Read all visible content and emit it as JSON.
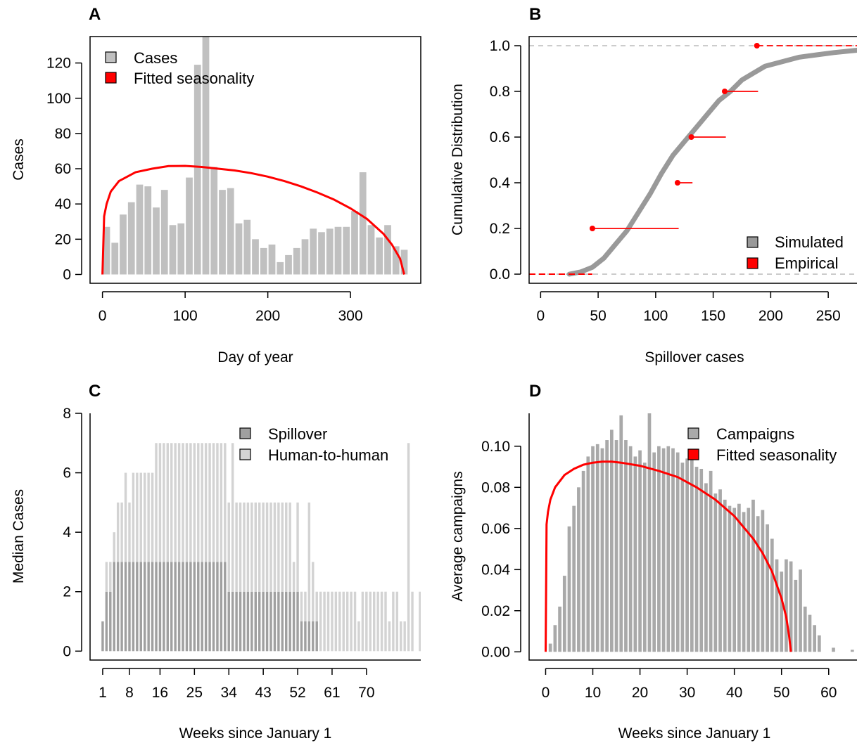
{
  "chart_data": [
    {
      "panel": "A",
      "type": "bar",
      "xlabel": "Day of year",
      "ylabel": "Cases",
      "xlim": [
        -15,
        385
      ],
      "ylim": [
        -5,
        135
      ],
      "xticks": [
        0,
        100,
        200,
        300
      ],
      "yticks": [
        0,
        20,
        40,
        60,
        80,
        100,
        120
      ],
      "legend_position": "top-left",
      "series": [
        {
          "name": "Cases",
          "type": "bar",
          "color": "#c0c0c0",
          "bin_width": 10,
          "x": [
            0,
            10,
            20,
            30,
            40,
            50,
            60,
            70,
            80,
            90,
            100,
            110,
            120,
            130,
            140,
            150,
            160,
            170,
            180,
            190,
            200,
            210,
            220,
            230,
            240,
            250,
            260,
            270,
            280,
            290,
            300,
            310,
            320,
            330,
            340,
            350,
            360
          ],
          "values": [
            27,
            18,
            34,
            41,
            51,
            50,
            38,
            48,
            28,
            29,
            55,
            119,
            135,
            61,
            48,
            49,
            29,
            31,
            20,
            15,
            17,
            7,
            11,
            15,
            20,
            26,
            24,
            26,
            27,
            27,
            36,
            58,
            28,
            21,
            28,
            16,
            14
          ]
        },
        {
          "name": "Fitted seasonality",
          "type": "line",
          "color": "#ff0000",
          "x": [
            0,
            2,
            5,
            10,
            20,
            40,
            60,
            80,
            100,
            120,
            140,
            160,
            180,
            200,
            220,
            240,
            260,
            280,
            300,
            320,
            340,
            350,
            360,
            365
          ],
          "values": [
            0,
            33,
            40,
            47,
            53,
            58,
            60,
            61.5,
            61.6,
            61,
            60,
            59,
            57.5,
            55.5,
            53,
            50,
            46.5,
            42.5,
            37.5,
            31.5,
            23,
            17,
            9,
            0
          ]
        }
      ]
    },
    {
      "panel": "B",
      "type": "line",
      "xlabel": "Spillover cases",
      "ylabel": "Cumulative Distribution",
      "xlim": [
        -10,
        275
      ],
      "ylim": [
        -0.04,
        1.04
      ],
      "xticks": [
        0,
        50,
        100,
        150,
        200,
        250
      ],
      "yticks": [
        0.0,
        0.2,
        0.4,
        0.6,
        0.8,
        1.0
      ],
      "reference_lines": [
        0.0,
        1.0
      ],
      "legend_position": "bottom-right",
      "series": [
        {
          "name": "Simulated",
          "type": "line",
          "color": "#999999",
          "x": [
            25,
            35,
            45,
            55,
            65,
            75,
            85,
            95,
            105,
            115,
            125,
            135,
            145,
            155,
            165,
            175,
            185,
            195,
            210,
            225,
            240,
            255,
            275
          ],
          "values": [
            0,
            0.01,
            0.03,
            0.07,
            0.13,
            0.19,
            0.27,
            0.35,
            0.44,
            0.52,
            0.58,
            0.64,
            0.7,
            0.76,
            0.8,
            0.85,
            0.88,
            0.91,
            0.93,
            0.95,
            0.96,
            0.97,
            0.98
          ]
        },
        {
          "name": "Empirical",
          "type": "step",
          "color": "#ff0000",
          "points": [
            {
              "x": 45,
              "y": 0.2,
              "x_end": 120
            },
            {
              "x": 119,
              "y": 0.4,
              "x_end": 132
            },
            {
              "x": 131,
              "y": 0.6,
              "x_end": 161
            },
            {
              "x": 160,
              "y": 0.8,
              "x_end": 189
            },
            {
              "x": 188,
              "y": 1.0,
              "x_end": 275
            }
          ],
          "zero_segment": [
            -10,
            45
          ]
        }
      ]
    },
    {
      "panel": "C",
      "type": "bar",
      "xlabel": "Weeks since January 1",
      "ylabel": "Median Cases",
      "xlim": [
        -2.3,
        84.2
      ],
      "ylim": [
        -0.3,
        8
      ],
      "xticks": [
        1,
        8,
        16,
        25,
        34,
        43,
        52,
        61,
        70
      ],
      "yticks": [
        0,
        2,
        4,
        6,
        8
      ],
      "legend_position": "top-right",
      "weeks_start": 1,
      "series": [
        {
          "name": "Spillover",
          "color": "#a0a0a0",
          "values": [
            1,
            2,
            2,
            3,
            3,
            3,
            3,
            3,
            3,
            3,
            3,
            3,
            3,
            3,
            3,
            3,
            3,
            3,
            3,
            3,
            3,
            3,
            3,
            3,
            3,
            3,
            3,
            3,
            3,
            3,
            3,
            3,
            3,
            2,
            2,
            2,
            2,
            2,
            2,
            2,
            2,
            2,
            2,
            2,
            2,
            2,
            2,
            2,
            2,
            2,
            2,
            2,
            1,
            1,
            1,
            1,
            1,
            0,
            0,
            0,
            0,
            0,
            0,
            0,
            0,
            0,
            0,
            0,
            0,
            0,
            0,
            0,
            0,
            0,
            0,
            0,
            0,
            0
          ]
        },
        {
          "name": "Human-to-human",
          "color": "#d3d3d3",
          "values": [
            0,
            1,
            1,
            1,
            2,
            2,
            3,
            2,
            3,
            3,
            3,
            3,
            3,
            3,
            4,
            4,
            4,
            4,
            4,
            4,
            4,
            4,
            4,
            4,
            4,
            4,
            4,
            4,
            4,
            4,
            4,
            4,
            4,
            3,
            5,
            3,
            3,
            3,
            3,
            3,
            3,
            3,
            3,
            3,
            3,
            3,
            3,
            3,
            3,
            3,
            1,
            3,
            1,
            1,
            4,
            2,
            1,
            2,
            2,
            2,
            2,
            2,
            2,
            2,
            2,
            2,
            2,
            1,
            2,
            2,
            2,
            2,
            2,
            2,
            2,
            1,
            2,
            2,
            1,
            1,
            7,
            2,
            0,
            2
          ]
        }
      ]
    },
    {
      "panel": "D",
      "type": "bar",
      "xlabel": "Weeks since January 1",
      "ylabel": "Average campaigns",
      "xlim": [
        -3.5,
        66
      ],
      "ylim": [
        -0.004,
        0.116
      ],
      "xticks": [
        0,
        10,
        20,
        30,
        40,
        50,
        60
      ],
      "yticks": [
        0.0,
        0.02,
        0.04,
        0.06,
        0.08,
        0.1
      ],
      "ytick_labels": [
        "0.00",
        "0.02",
        "0.04",
        "0.06",
        "0.08",
        "0.10"
      ],
      "legend_position": "top-right",
      "series": [
        {
          "name": "Campaigns",
          "type": "bar",
          "color": "#a9a9a9",
          "bin_width": 1,
          "x": [
            1,
            2,
            3,
            4,
            5,
            6,
            7,
            8,
            9,
            10,
            11,
            12,
            13,
            14,
            15,
            16,
            17,
            18,
            19,
            20,
            21,
            22,
            23,
            24,
            25,
            26,
            27,
            28,
            29,
            30,
            31,
            32,
            33,
            34,
            35,
            36,
            37,
            38,
            39,
            40,
            41,
            42,
            43,
            44,
            45,
            46,
            47,
            48,
            49,
            50,
            51,
            52,
            53,
            54,
            55,
            56,
            57,
            58,
            59,
            60,
            61,
            62,
            63,
            64,
            65
          ],
          "values": [
            0.004,
            0.013,
            0.022,
            0.037,
            0.061,
            0.071,
            0.08,
            0.088,
            0.095,
            0.1,
            0.101,
            0.099,
            0.103,
            0.108,
            0.103,
            0.115,
            0.103,
            0.1,
            0.095,
            0.098,
            0.092,
            0.12,
            0.097,
            0.1,
            0.099,
            0.1,
            0.099,
            0.097,
            0.092,
            0.094,
            0.096,
            0.09,
            0.089,
            0.082,
            0.088,
            0.077,
            0.079,
            0.074,
            0.071,
            0.07,
            0.072,
            0.068,
            0.07,
            0.074,
            0.066,
            0.069,
            0.062,
            0.055,
            0.045,
            0.039,
            0.045,
            0.044,
            0.035,
            0.04,
            0.022,
            0.018,
            0.013,
            0.008,
            0,
            0,
            0.002,
            0,
            0,
            0,
            0.001
          ]
        },
        {
          "name": "Fitted seasonality",
          "type": "line",
          "color": "#ff0000",
          "x": [
            0,
            0.2,
            0.5,
            1,
            2,
            4,
            6,
            8,
            10,
            12,
            14,
            16,
            20,
            24,
            28,
            32,
            36,
            40,
            44,
            46,
            48,
            50,
            51,
            51.6,
            52
          ],
          "values": [
            0,
            0.062,
            0.068,
            0.074,
            0.08,
            0.086,
            0.089,
            0.091,
            0.092,
            0.0925,
            0.0925,
            0.092,
            0.0905,
            0.088,
            0.085,
            0.08,
            0.074,
            0.066,
            0.055,
            0.048,
            0.039,
            0.026,
            0.017,
            0.008,
            0
          ]
        }
      ]
    }
  ]
}
